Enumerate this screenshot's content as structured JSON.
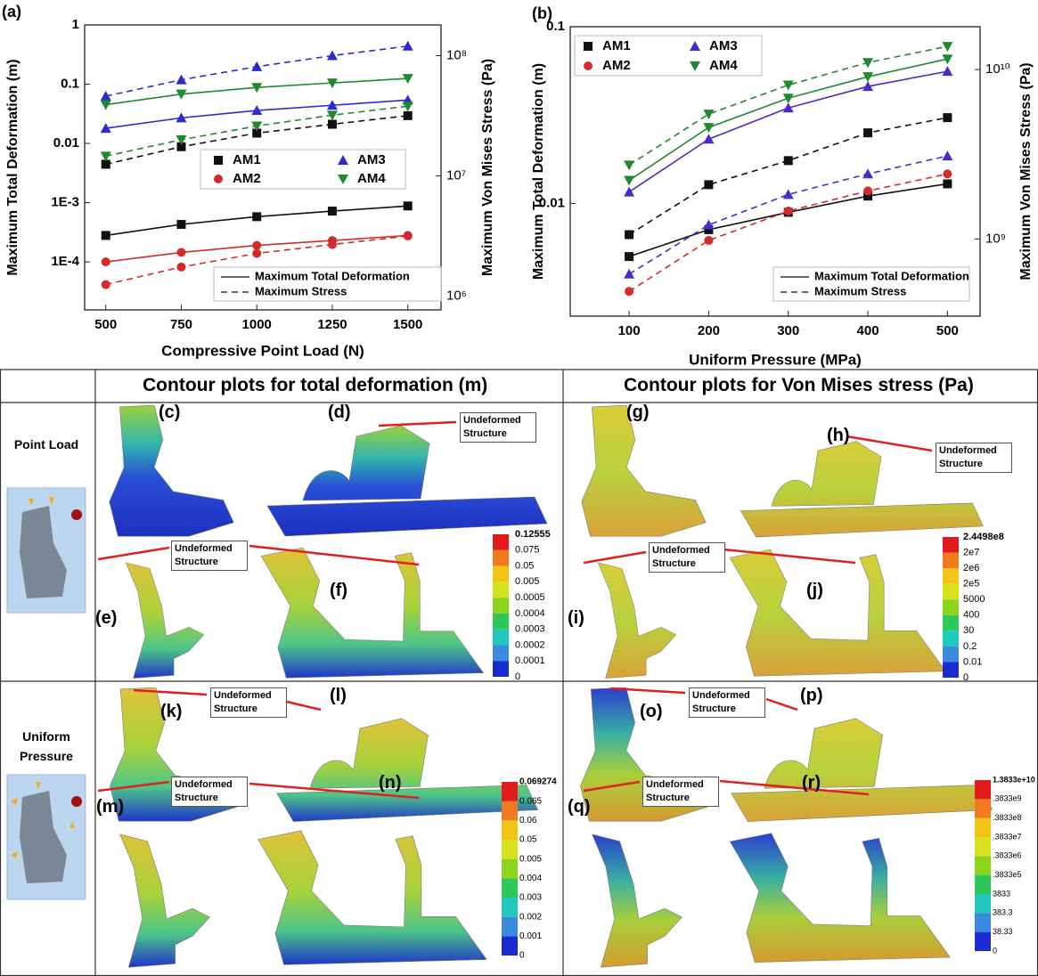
{
  "chart_data": [
    {
      "type": "line",
      "label": "(a)",
      "x": [
        500,
        750,
        1000,
        1250,
        1500
      ],
      "xlim": [
        430,
        1610
      ],
      "xticks": [
        500,
        750,
        1000,
        1250,
        1500
      ],
      "xlabel": "Compressive Point Load (N)",
      "ylabel": "Maximum Total Deformation (m)",
      "y2label": "Maximum Von Mises Stress (Pa)",
      "log": true,
      "ylim": [
        1.55e-05,
        1
      ],
      "yticks": [
        {
          "value": 0.0001,
          "label": "1E-4"
        },
        {
          "value": 0.001,
          "label": "1E-3"
        },
        0.01,
        0.1,
        1
      ],
      "y2lim": [
        770000,
        180000000
      ],
      "y2ticks": [
        {
          "value": 1000000,
          "label": "10⁶"
        },
        {
          "value": 10000000,
          "label": "10⁷"
        },
        {
          "value": 100000000,
          "label": "10⁸"
        }
      ],
      "series": [
        {
          "name": "AM1",
          "color": "#111111",
          "marker": "square",
          "values": [
            0.00028,
            0.00043,
            0.00058,
            0.00072,
            0.00088
          ],
          "y2values": [
            12500000,
            17500000,
            22700000,
            26900000,
            31700000
          ]
        },
        {
          "name": "AM2",
          "color": "#d42a2a",
          "marker": "circle",
          "values": [
            0.0001,
            0.000145,
            0.00019,
            0.00023,
            0.00028
          ],
          "y2values": [
            1250000,
            1750000,
            2270000,
            2690000,
            3170000
          ]
        },
        {
          "name": "AM3",
          "color": "#2b2bd0",
          "marker": "triangle-up",
          "values": [
            0.018,
            0.027,
            0.036,
            0.044,
            0.054
          ],
          "y2values": [
            46000000,
            63000000,
            81000000,
            100000000,
            120000000
          ]
        },
        {
          "name": "AM4",
          "color": "#1e8a2e",
          "marker": "triangle-down",
          "values": [
            0.045,
            0.068,
            0.088,
            0.105,
            0.125
          ],
          "y2values": [
            14600000,
            20000000,
            26000000,
            32000000,
            38000000
          ]
        }
      ],
      "line_styles": [
        "Maximum Total Deformation",
        "Maximum Stress"
      ]
    },
    {
      "type": "line",
      "label": "(b)",
      "x": [
        100,
        200,
        300,
        400,
        500
      ],
      "xlim": [
        26,
        541
      ],
      "xticks": [
        100,
        200,
        300,
        400,
        500
      ],
      "xlabel": "Uniform Pressure (MPa)",
      "ylabel": "Maximum Total Deformation (m)",
      "y2label": "Maximum Von Mises Stress (Pa)",
      "log": true,
      "ylim": [
        0.0023,
        0.1
      ],
      "yticks": [
        0.01,
        0.1
      ],
      "y2lim": [
        350000000,
        17900000000
      ],
      "y2ticks": [
        {
          "value": 1000000000,
          "label": "10⁹"
        },
        {
          "value": 10000000000,
          "label": "10¹⁰"
        }
      ],
      "series": [
        {
          "name": "AM1",
          "color": "#111111",
          "marker": "square",
          "values": [
            0.005,
            0.0071,
            0.0089,
            0.011,
            0.0129
          ],
          "y2values": [
            1060000000,
            2090000000,
            2900000000,
            4230000000,
            5200000000
          ]
        },
        {
          "name": "AM2",
          "color": "#d42a2a",
          "marker": "circle",
          "values": [
            null,
            null,
            null,
            null,
            null
          ],
          "y2values": [
            490000000,
            980000000,
            1460000000,
            1920000000,
            2420000000
          ]
        },
        {
          "name": "AM3",
          "color": "#4b2bc8",
          "marker": "triangle-up",
          "values": [
            0.0116,
            0.0231,
            0.0347,
            0.0459,
            0.0559
          ],
          "y2values": [
            620000000,
            1210000000,
            1830000000,
            2420000000,
            3090000000
          ]
        },
        {
          "name": "AM4",
          "color": "#1e8a2e",
          "marker": "triangle-down",
          "values": [
            0.0135,
            0.0269,
            0.0394,
            0.0521,
            0.0657
          ],
          "y2values": [
            2730000000,
            5460000000,
            8100000000,
            11000000000,
            13700000000
          ]
        }
      ],
      "line_styles": [
        "Maximum Total Deformation",
        "Maximum Stress"
      ]
    }
  ],
  "contours": {
    "headers": [
      "Contour plots for total deformation (m)",
      "Contour plots for Von Mises stress (Pa)"
    ],
    "rows": [
      "Point Load",
      "Uniform Pressure"
    ],
    "panels": [
      "(c)",
      "(d)",
      "(e)",
      "(f)",
      "(g)",
      "(h)",
      "(i)",
      "(j)",
      "(k)",
      "(l)",
      "(m)",
      "(n)",
      "(o)",
      "(p)",
      "(q)",
      "(r)"
    ],
    "annotations": [
      "Undeformed Structure",
      "Undeformed Structure",
      "Undeformed Structure",
      "Undeformed Structure",
      "Undeformed Structure",
      "Undeformed Structure",
      "Undeformed Structure",
      "Undeformed Structure"
    ],
    "colorbars": [
      [
        "0.12555",
        "0.075",
        "0.05",
        "0.005",
        "0.0005",
        "0.0004",
        "0.0003",
        "0.0002",
        "0.0001",
        "0"
      ],
      [
        "2.4498e8",
        "2e7",
        "2e6",
        "2e5",
        "5000",
        "400",
        "30",
        "0.2",
        "0.01",
        "0"
      ],
      [
        "0.069274",
        "0.065",
        "0.06",
        "0.05",
        "0.005",
        "0.004",
        "0.003",
        "0.002",
        "0.001",
        "0"
      ],
      [
        "1.3833e+10",
        ".3833e9",
        ".3833e8",
        ".3833e7",
        ".3833e6",
        ".3833e5",
        "3833",
        "383.3",
        "38.33",
        "0"
      ]
    ]
  }
}
